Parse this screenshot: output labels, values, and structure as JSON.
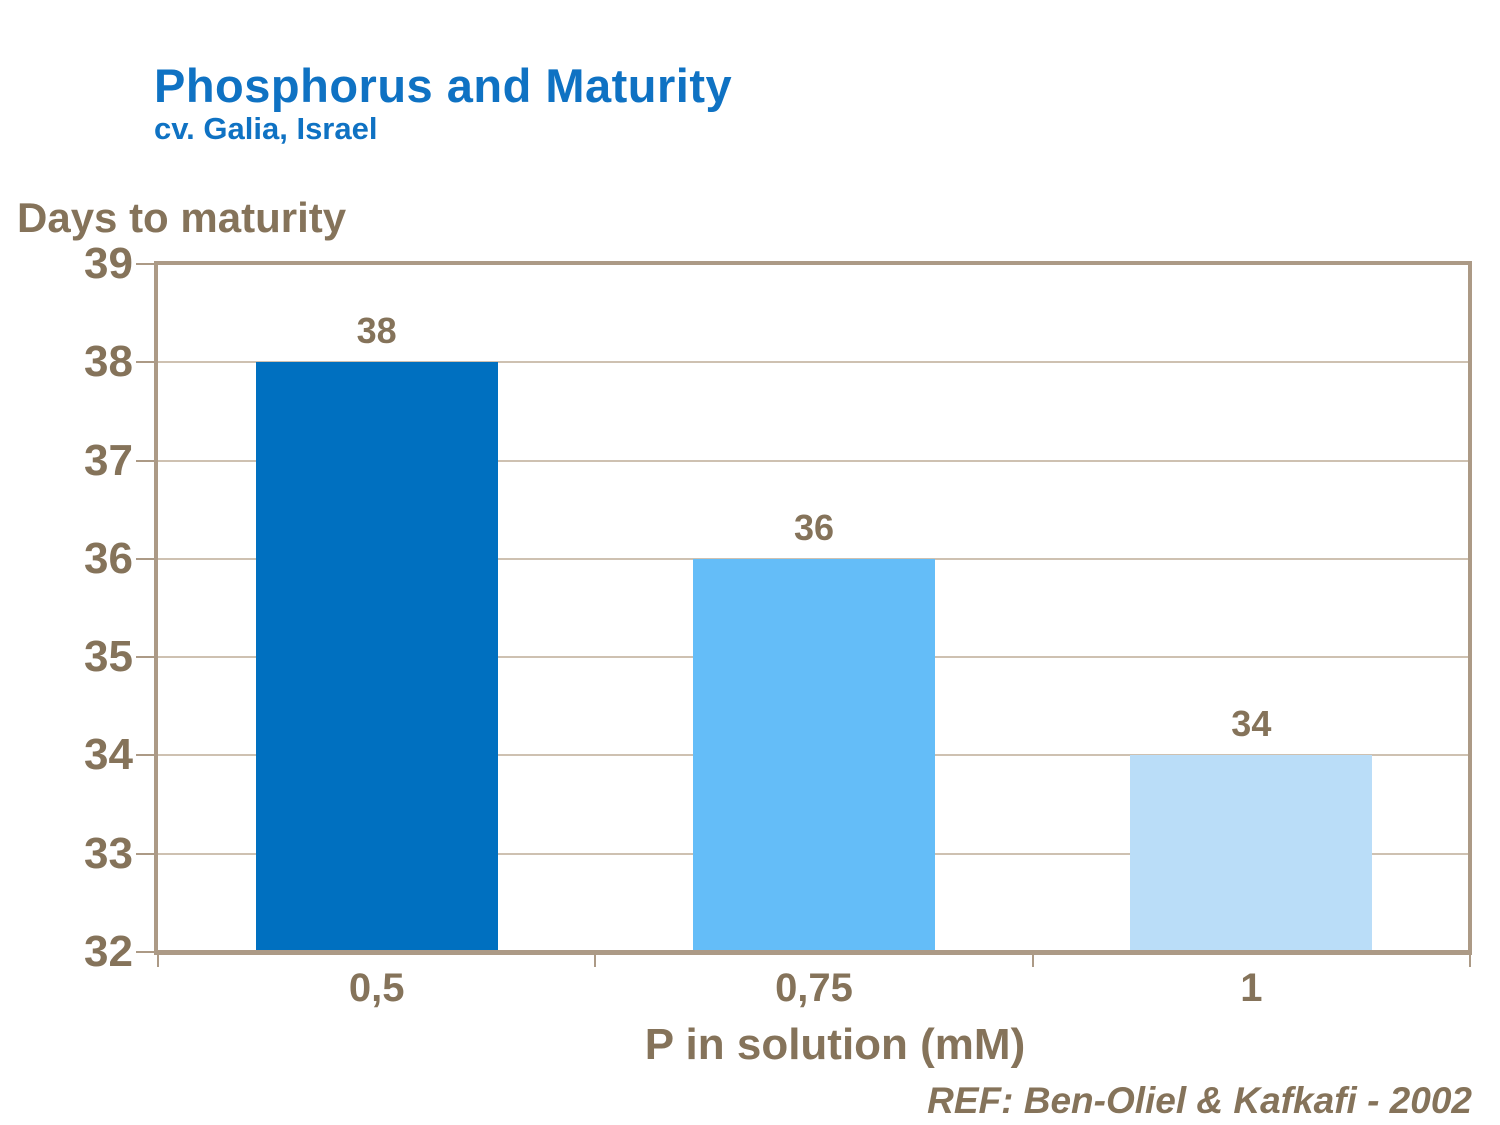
{
  "slide": {
    "background": "#FFFFFF"
  },
  "header": {
    "title": "Phosphorus and Maturity",
    "subtitle": "cv. Galia, Israel",
    "title_color": "#0F72C3"
  },
  "chart_data": {
    "type": "bar",
    "title": "Phosphorus and Maturity",
    "subtitle": "cv. Galia, Israel",
    "ylabel": "Days to maturity",
    "xlabel": "P in solution (mM)",
    "categories": [
      "0,5",
      "0,75",
      "1"
    ],
    "values": [
      38,
      36,
      34
    ],
    "data_labels": [
      "38",
      "36",
      "34"
    ],
    "bar_colors": [
      "#0070C0",
      "#64BDF8",
      "#BADDF8"
    ],
    "ylim": [
      32,
      39
    ],
    "yticks": [
      32,
      33,
      34,
      35,
      36,
      37,
      38,
      39
    ],
    "ytick_step": 1,
    "grid": true,
    "legend_position": "none",
    "text_color": "#85735A",
    "axis_color": "#AC9A86",
    "grid_color": "#CEC1B1"
  },
  "footer": {
    "reference": "REF: Ben-Oliel & Kafkafi - 2002"
  }
}
